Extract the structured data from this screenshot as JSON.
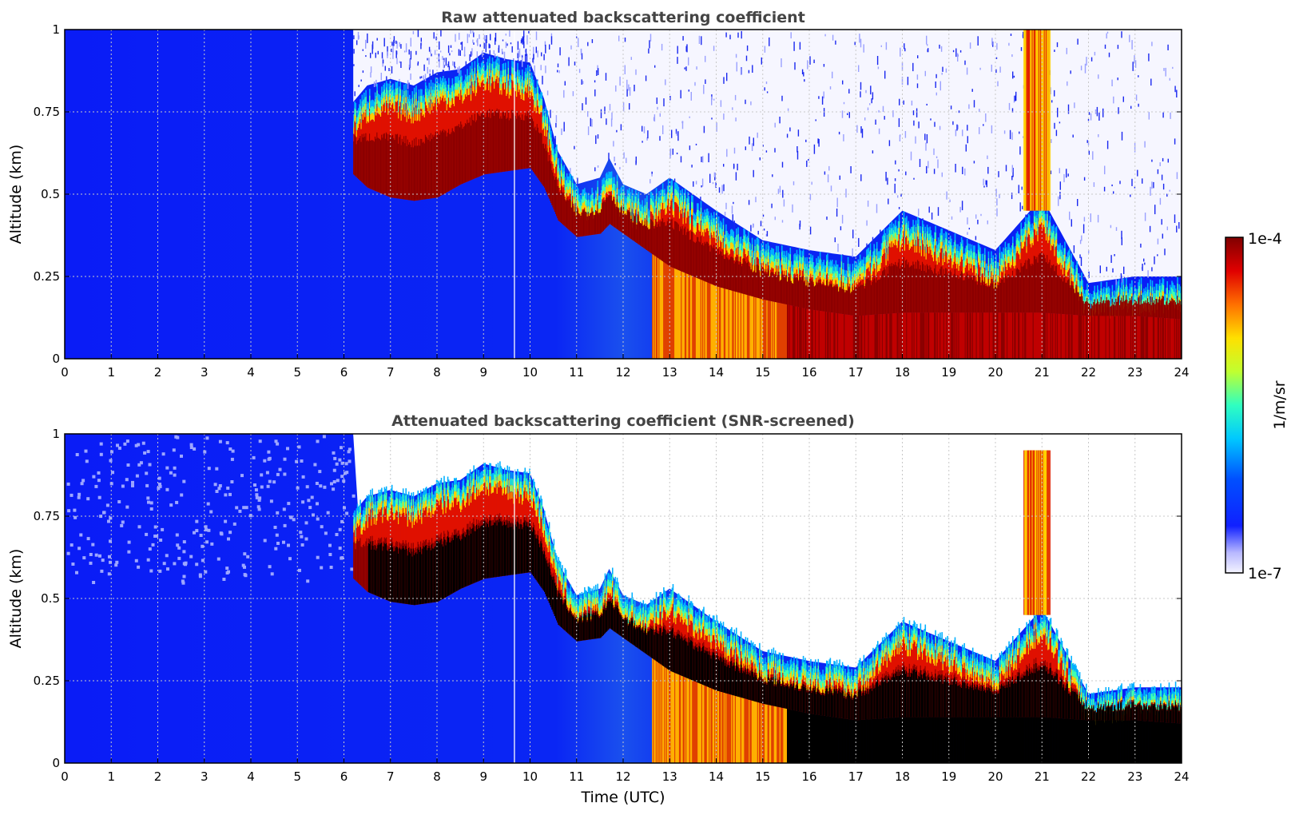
{
  "chart_data": [
    {
      "type": "heatmap",
      "title": "Raw attenuated backscattering coefficient",
      "xlabel": "",
      "ylabel": "Altitude (km)",
      "xlim": [
        0,
        24
      ],
      "ylim": [
        0,
        1
      ],
      "x_ticks": [
        "0",
        "1",
        "2",
        "3",
        "4",
        "5",
        "6",
        "7",
        "8",
        "9",
        "10",
        "11",
        "12",
        "13",
        "14",
        "15",
        "16",
        "17",
        "18",
        "19",
        "20",
        "21",
        "22",
        "23",
        "24"
      ],
      "y_ticks": [
        "0",
        "0.25",
        "0.5",
        "0.75",
        "1"
      ],
      "grid": true,
      "colorscale": "jet (log)",
      "cloud_base_km": [
        [
          6.2,
          0.56
        ],
        [
          6.5,
          0.52
        ],
        [
          7.0,
          0.49
        ],
        [
          7.5,
          0.48
        ],
        [
          8.0,
          0.49
        ],
        [
          8.5,
          0.53
        ],
        [
          9.0,
          0.56
        ],
        [
          9.5,
          0.57
        ],
        [
          10.0,
          0.58
        ],
        [
          10.3,
          0.52
        ],
        [
          10.6,
          0.42
        ],
        [
          11.0,
          0.37
        ],
        [
          11.5,
          0.38
        ],
        [
          11.7,
          0.41
        ],
        [
          12.0,
          0.38
        ],
        [
          12.5,
          0.33
        ],
        [
          13.0,
          0.28
        ],
        [
          14.0,
          0.22
        ],
        [
          15.0,
          0.18
        ],
        [
          16.0,
          0.15
        ],
        [
          17.0,
          0.13
        ],
        [
          18.0,
          0.14
        ],
        [
          19.0,
          0.14
        ],
        [
          20.0,
          0.14
        ],
        [
          21.0,
          0.14
        ],
        [
          22.0,
          0.13
        ],
        [
          23.0,
          0.13
        ],
        [
          24.0,
          0.12
        ]
      ],
      "cloud_top_km": [
        [
          6.2,
          0.75
        ],
        [
          6.5,
          0.8
        ],
        [
          7.0,
          0.82
        ],
        [
          7.5,
          0.8
        ],
        [
          8.0,
          0.84
        ],
        [
          8.5,
          0.85
        ],
        [
          9.0,
          0.9
        ],
        [
          9.5,
          0.88
        ],
        [
          10.0,
          0.87
        ],
        [
          10.3,
          0.76
        ],
        [
          10.6,
          0.6
        ],
        [
          11.0,
          0.5
        ],
        [
          11.5,
          0.52
        ],
        [
          11.7,
          0.58
        ],
        [
          12.0,
          0.5
        ],
        [
          12.5,
          0.47
        ],
        [
          13.0,
          0.52
        ],
        [
          14.0,
          0.42
        ],
        [
          15.0,
          0.33
        ],
        [
          16.0,
          0.3
        ],
        [
          17.0,
          0.28
        ],
        [
          18.0,
          0.42
        ],
        [
          19.0,
          0.36
        ],
        [
          20.0,
          0.3
        ],
        [
          21.0,
          0.46
        ],
        [
          22.0,
          0.2
        ],
        [
          23.0,
          0.22
        ],
        [
          24.0,
          0.22
        ]
      ]
    },
    {
      "type": "heatmap",
      "title": "Attenuated backscattering coefficient (SNR-screened)",
      "xlabel": "Time (UTC)",
      "ylabel": "Altitude (km)",
      "xlim": [
        0,
        24
      ],
      "ylim": [
        0,
        1
      ],
      "x_ticks": [
        "0",
        "1",
        "2",
        "3",
        "4",
        "5",
        "6",
        "7",
        "8",
        "9",
        "10",
        "11",
        "12",
        "13",
        "14",
        "15",
        "16",
        "17",
        "18",
        "19",
        "20",
        "21",
        "22",
        "23",
        "24"
      ],
      "y_ticks": [
        "0",
        "0.25",
        "0.5",
        "0.75",
        "1"
      ],
      "grid": true,
      "colorscale": "jet (log)",
      "screened_note": "values above cloud top removed; saturated core shown in black"
    }
  ],
  "colorbar": {
    "label": "1/m/sr",
    "max_label": "1e-4",
    "min_label": "1e-7",
    "placement": "right"
  },
  "colors": {
    "background_blue": "#0b1bf5",
    "core_red": "#8b0000",
    "saturated": "#000000",
    "title_gray": "#444444"
  }
}
